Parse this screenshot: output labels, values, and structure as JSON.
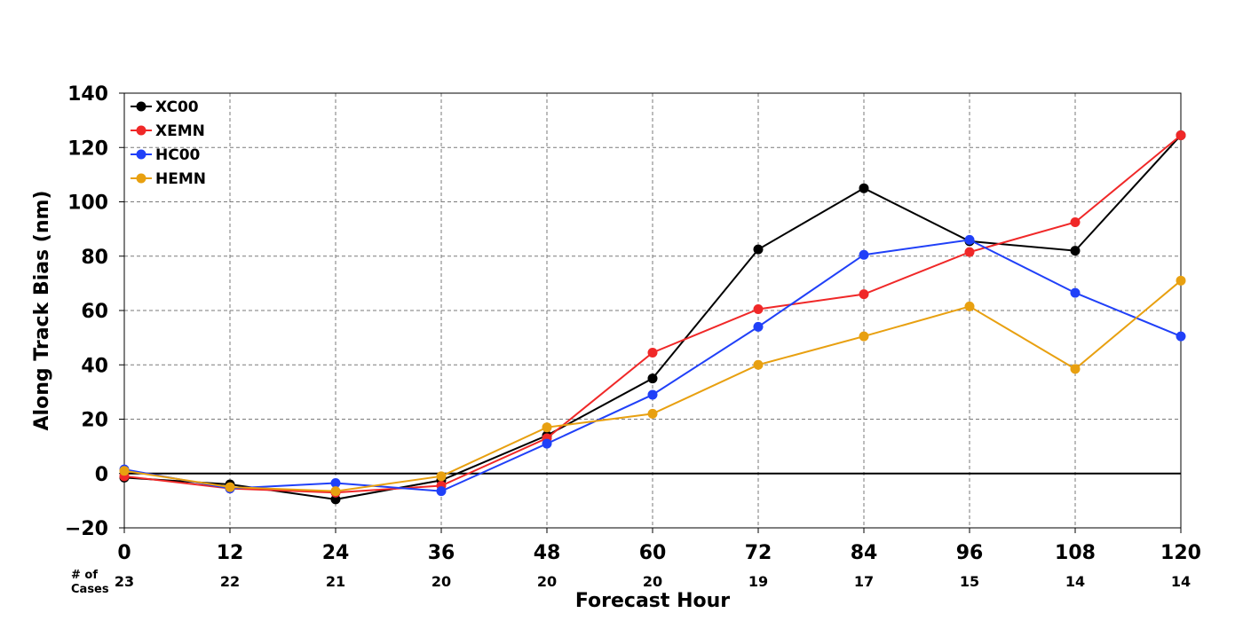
{
  "chart_data": {
    "type": "line",
    "title": "",
    "xlabel": "Forecast Hour",
    "ylabel": "Along Track Bias (nm)",
    "x": [
      0,
      12,
      24,
      36,
      48,
      60,
      72,
      84,
      96,
      108,
      120
    ],
    "x_ticks": [
      "0",
      "12",
      "24",
      "36",
      "48",
      "60",
      "72",
      "84",
      "96",
      "108",
      "120"
    ],
    "xlim": [
      0,
      120
    ],
    "ylim": [
      -20,
      140
    ],
    "y_ticks": [
      -20,
      0,
      20,
      40,
      60,
      80,
      100,
      120,
      140
    ],
    "grid": true,
    "legend_position": "top-left",
    "series": [
      {
        "name": "XC00",
        "color": "#000000",
        "values": [
          -1.5,
          -4,
          -9.5,
          -2.5,
          14,
          35,
          82.5,
          105,
          85.5,
          82,
          124.5
        ]
      },
      {
        "name": "XEMN",
        "color": "#f02828",
        "values": [
          -1,
          -5.5,
          -7,
          -4.5,
          13,
          44.5,
          60.5,
          66,
          81.5,
          92.5,
          124.5
        ]
      },
      {
        "name": "HC00",
        "color": "#2040f8",
        "values": [
          1.5,
          -5.5,
          -3.5,
          -6.5,
          11,
          29,
          54,
          80.5,
          86,
          66.5,
          50.5
        ]
      },
      {
        "name": "HEMN",
        "color": "#e8a010",
        "values": [
          1,
          -5,
          -6.5,
          -1,
          17,
          22,
          40,
          50.5,
          61.5,
          38.5,
          71
        ]
      }
    ],
    "cases_label": [
      "# of",
      "Cases"
    ],
    "cases": [
      "23",
      "22",
      "21",
      "20",
      "20",
      "20",
      "19",
      "17",
      "15",
      "14",
      "14"
    ]
  }
}
